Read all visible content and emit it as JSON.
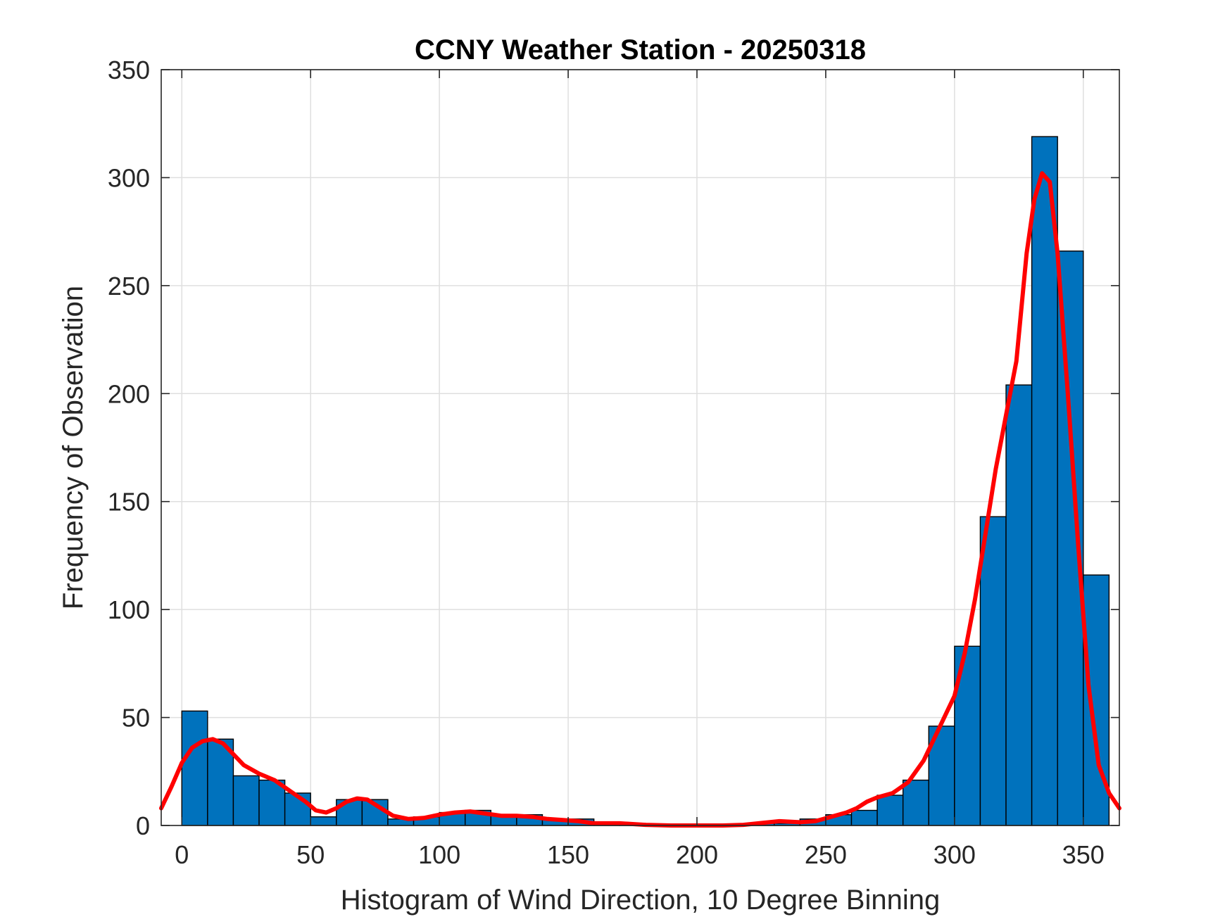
{
  "chart_data": {
    "type": "bar",
    "title": "CCNY Weather Station - 20250318",
    "xlabel": "Histogram of Wind Direction, 10 Degree Binning",
    "ylabel": "Frequency of Observation",
    "xlim": [
      -8,
      364
    ],
    "ylim": [
      0,
      350
    ],
    "x_ticks": [
      0,
      50,
      100,
      150,
      200,
      250,
      300,
      350
    ],
    "y_ticks": [
      0,
      50,
      100,
      150,
      200,
      250,
      300,
      350
    ],
    "grid": true,
    "bin_width": 10,
    "bins": [
      {
        "start": 0,
        "value": 53
      },
      {
        "start": 10,
        "value": 40
      },
      {
        "start": 20,
        "value": 23
      },
      {
        "start": 30,
        "value": 21
      },
      {
        "start": 40,
        "value": 15
      },
      {
        "start": 50,
        "value": 4
      },
      {
        "start": 60,
        "value": 12
      },
      {
        "start": 70,
        "value": 12
      },
      {
        "start": 80,
        "value": 3
      },
      {
        "start": 90,
        "value": 4
      },
      {
        "start": 100,
        "value": 6
      },
      {
        "start": 110,
        "value": 7
      },
      {
        "start": 120,
        "value": 5
      },
      {
        "start": 130,
        "value": 5
      },
      {
        "start": 140,
        "value": 3
      },
      {
        "start": 150,
        "value": 3
      },
      {
        "start": 160,
        "value": 1
      },
      {
        "start": 170,
        "value": 1
      },
      {
        "start": 180,
        "value": 0
      },
      {
        "start": 190,
        "value": 0
      },
      {
        "start": 200,
        "value": 0
      },
      {
        "start": 210,
        "value": 0
      },
      {
        "start": 220,
        "value": 1
      },
      {
        "start": 230,
        "value": 1
      },
      {
        "start": 240,
        "value": 3
      },
      {
        "start": 250,
        "value": 5
      },
      {
        "start": 260,
        "value": 7
      },
      {
        "start": 270,
        "value": 14
      },
      {
        "start": 280,
        "value": 21
      },
      {
        "start": 290,
        "value": 46
      },
      {
        "start": 300,
        "value": 83
      },
      {
        "start": 310,
        "value": 143
      },
      {
        "start": 320,
        "value": 204
      },
      {
        "start": 330,
        "value": 319
      },
      {
        "start": 340,
        "value": 266
      },
      {
        "start": 350,
        "value": 116
      }
    ],
    "fit_curve": {
      "name": "fit",
      "color": "#ff0000",
      "points": [
        [
          -8,
          8
        ],
        [
          -4,
          18
        ],
        [
          0,
          29
        ],
        [
          4,
          36
        ],
        [
          8,
          39
        ],
        [
          12,
          40
        ],
        [
          16,
          38
        ],
        [
          20,
          33
        ],
        [
          24,
          28
        ],
        [
          30,
          24
        ],
        [
          36,
          21
        ],
        [
          42,
          16
        ],
        [
          48,
          11
        ],
        [
          52,
          7
        ],
        [
          56,
          6
        ],
        [
          60,
          8
        ],
        [
          64,
          11
        ],
        [
          68,
          12.5
        ],
        [
          72,
          12
        ],
        [
          76,
          9
        ],
        [
          82,
          4.5
        ],
        [
          88,
          3
        ],
        [
          94,
          3.5
        ],
        [
          100,
          5
        ],
        [
          106,
          6
        ],
        [
          112,
          6.5
        ],
        [
          118,
          5.5
        ],
        [
          124,
          4.5
        ],
        [
          130,
          4.5
        ],
        [
          136,
          4
        ],
        [
          142,
          3
        ],
        [
          148,
          2.5
        ],
        [
          154,
          2
        ],
        [
          160,
          1
        ],
        [
          170,
          1
        ],
        [
          180,
          0.3
        ],
        [
          190,
          0
        ],
        [
          200,
          0
        ],
        [
          210,
          0
        ],
        [
          218,
          0.3
        ],
        [
          224,
          1
        ],
        [
          232,
          2
        ],
        [
          240,
          1.5
        ],
        [
          246,
          2
        ],
        [
          252,
          4
        ],
        [
          258,
          6
        ],
        [
          262,
          8
        ],
        [
          266,
          11
        ],
        [
          270,
          13
        ],
        [
          276,
          15
        ],
        [
          282,
          20
        ],
        [
          288,
          30
        ],
        [
          294,
          45
        ],
        [
          300,
          60
        ],
        [
          304,
          80
        ],
        [
          308,
          105
        ],
        [
          312,
          135
        ],
        [
          316,
          165
        ],
        [
          320,
          190
        ],
        [
          324,
          215
        ],
        [
          328,
          265
        ],
        [
          331,
          290
        ],
        [
          334,
          302
        ],
        [
          337,
          298
        ],
        [
          340,
          265
        ],
        [
          344,
          200
        ],
        [
          348,
          130
        ],
        [
          352,
          65
        ],
        [
          356,
          28
        ],
        [
          360,
          15
        ],
        [
          364,
          8
        ]
      ]
    },
    "colors": {
      "bar_fill": "#0072bd",
      "bar_edge": "#000000",
      "grid": "#dfdfdf",
      "axis": "#262626"
    }
  }
}
